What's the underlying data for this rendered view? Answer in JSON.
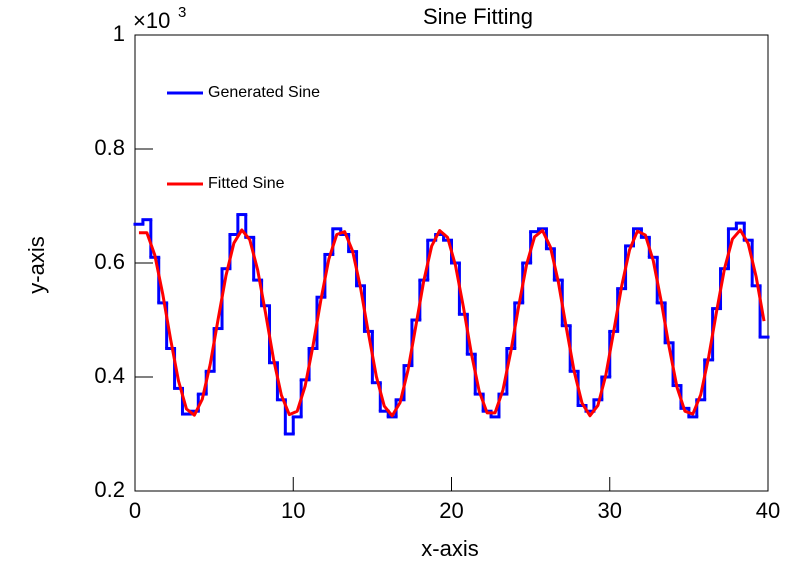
{
  "chart_data": {
    "type": "histogram_fit",
    "title": "Sine Fitting",
    "x_label": "x-axis",
    "y_label": "y-axis",
    "y_multiplier": "×10",
    "y_multiplier_exp": "3",
    "xlim": [
      0,
      40
    ],
    "ylim": [
      0.2,
      1
    ],
    "xticks": [
      0,
      10,
      20,
      30,
      40
    ],
    "yticks": [
      0.2,
      0.4,
      0.6,
      0.8,
      1
    ],
    "legend": "top-left",
    "histogram": {
      "name": "Generated Sine",
      "color": "#0000ff",
      "bins": [
        0,
        0.5,
        1,
        1.5,
        2,
        2.5,
        3,
        3.5,
        4,
        4.5,
        5,
        5.5,
        6,
        6.5,
        7,
        7.5,
        8,
        8.5,
        9,
        9.5,
        10,
        10.5,
        11,
        11.5,
        12,
        12.5,
        13,
        13.5,
        14,
        14.5,
        15,
        15.5,
        16,
        16.5,
        17,
        17.5,
        18,
        18.5,
        19,
        19.5,
        20,
        20.5,
        21,
        21.5,
        22,
        22.5,
        23,
        23.5,
        24,
        24.5,
        25,
        25.5,
        26,
        26.5,
        27,
        27.5,
        28,
        28.5,
        29,
        29.5,
        30,
        30.5,
        31,
        31.5,
        32,
        32.5,
        33,
        33.5,
        34,
        34.5,
        35,
        35.5,
        36,
        36.5,
        37,
        37.5,
        38,
        38.5,
        39,
        39.5,
        40
      ],
      "values": [
        0.668,
        0.676,
        0.61,
        0.53,
        0.45,
        0.38,
        0.335,
        0.34,
        0.37,
        0.41,
        0.485,
        0.59,
        0.65,
        0.685,
        0.645,
        0.57,
        0.525,
        0.425,
        0.36,
        0.3,
        0.33,
        0.395,
        0.45,
        0.54,
        0.615,
        0.66,
        0.65,
        0.62,
        0.56,
        0.48,
        0.39,
        0.34,
        0.33,
        0.36,
        0.42,
        0.5,
        0.57,
        0.64,
        0.65,
        0.64,
        0.6,
        0.51,
        0.44,
        0.37,
        0.34,
        0.33,
        0.37,
        0.45,
        0.53,
        0.6,
        0.655,
        0.66,
        0.625,
        0.57,
        0.49,
        0.41,
        0.35,
        0.34,
        0.36,
        0.4,
        0.48,
        0.555,
        0.63,
        0.66,
        0.645,
        0.61,
        0.53,
        0.46,
        0.385,
        0.345,
        0.33,
        0.36,
        0.43,
        0.52,
        0.59,
        0.66,
        0.67,
        0.64,
        0.56,
        0.47
      ]
    },
    "fit": {
      "name": "Fitted Sine",
      "color": "#ff0000",
      "x": [
        0.25,
        0.75,
        1.25,
        1.75,
        2.25,
        2.75,
        3.25,
        3.75,
        4.25,
        4.75,
        5.25,
        5.75,
        6.25,
        6.75,
        7.25,
        7.75,
        8.25,
        8.75,
        9.25,
        9.75,
        10.25,
        10.75,
        11.25,
        11.75,
        12.25,
        12.75,
        13.25,
        13.75,
        14.25,
        14.75,
        15.25,
        15.75,
        16.25,
        16.75,
        17.25,
        17.75,
        18.25,
        18.75,
        19.25,
        19.75,
        20.25,
        20.75,
        21.25,
        21.75,
        22.25,
        22.75,
        23.25,
        23.75,
        24.25,
        24.75,
        25.25,
        25.75,
        26.25,
        26.75,
        27.25,
        27.75,
        28.25,
        28.75,
        29.25,
        29.75,
        30.25,
        30.75,
        31.25,
        31.75,
        32.25,
        32.75,
        33.25,
        33.75,
        34.25,
        34.75,
        35.25,
        35.75,
        36.25,
        36.75,
        37.25,
        37.75,
        38.25,
        38.75,
        39.25,
        39.75
      ],
      "values": [
        0.653,
        0.653,
        0.614,
        0.546,
        0.466,
        0.393,
        0.344,
        0.333,
        0.361,
        0.422,
        0.501,
        0.578,
        0.635,
        0.658,
        0.641,
        0.588,
        0.512,
        0.432,
        0.368,
        0.334,
        0.34,
        0.384,
        0.455,
        0.536,
        0.607,
        0.65,
        0.655,
        0.621,
        0.557,
        0.477,
        0.401,
        0.349,
        0.332,
        0.355,
        0.412,
        0.49,
        0.569,
        0.63,
        0.657,
        0.645,
        0.596,
        0.523,
        0.442,
        0.375,
        0.337,
        0.337,
        0.377,
        0.445,
        0.525,
        0.598,
        0.646,
        0.657,
        0.628,
        0.567,
        0.487,
        0.41,
        0.354,
        0.332,
        0.35,
        0.403,
        0.48,
        0.559,
        0.623,
        0.656,
        0.649,
        0.604,
        0.533,
        0.453,
        0.382,
        0.34,
        0.335,
        0.369,
        0.435,
        0.515,
        0.59,
        0.642,
        0.658,
        0.634,
        0.576,
        0.498
      ]
    }
  }
}
